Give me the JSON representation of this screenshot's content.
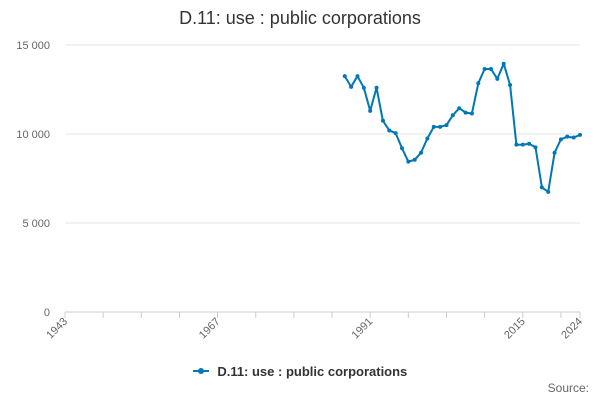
{
  "chart_data": {
    "type": "line",
    "title": "D.11: use : public corporations",
    "xlabel": "",
    "ylabel": "",
    "xlim": [
      1943,
      2024
    ],
    "ylim": [
      0,
      15000
    ],
    "x_ticks": [
      "1943",
      "1967",
      "1991",
      "2015",
      "2024"
    ],
    "y_ticks": [
      "0",
      "5 000",
      "10 000",
      "15 000"
    ],
    "y_tick_values": [
      0,
      5000,
      10000,
      15000
    ],
    "grid": true,
    "legend_position": "bottom",
    "series": [
      {
        "name": "D.11: use : public corporations",
        "color": "#0077B6",
        "x": [
          1987,
          1988,
          1989,
          1990,
          1991,
          1992,
          1993,
          1994,
          1995,
          1996,
          1997,
          1998,
          1999,
          2000,
          2001,
          2002,
          2003,
          2004,
          2005,
          2006,
          2007,
          2008,
          2009,
          2010,
          2011,
          2012,
          2013,
          2014,
          2015,
          2016,
          2017,
          2018,
          2019,
          2020,
          2021,
          2022,
          2023,
          2024
        ],
        "values": [
          13250,
          12650,
          13250,
          12600,
          11300,
          12600,
          10750,
          10200,
          10050,
          9200,
          8450,
          8550,
          8950,
          9750,
          10400,
          10400,
          10500,
          11050,
          11450,
          11200,
          11150,
          12850,
          13650,
          13650,
          13100,
          13950,
          12750,
          9400,
          9400,
          9450,
          9250,
          7000,
          6750,
          8950,
          9700,
          9850,
          9800,
          9950
        ]
      }
    ]
  },
  "legend": {
    "label": "D.11: use : public corporations"
  },
  "source": {
    "label": "Source:"
  }
}
